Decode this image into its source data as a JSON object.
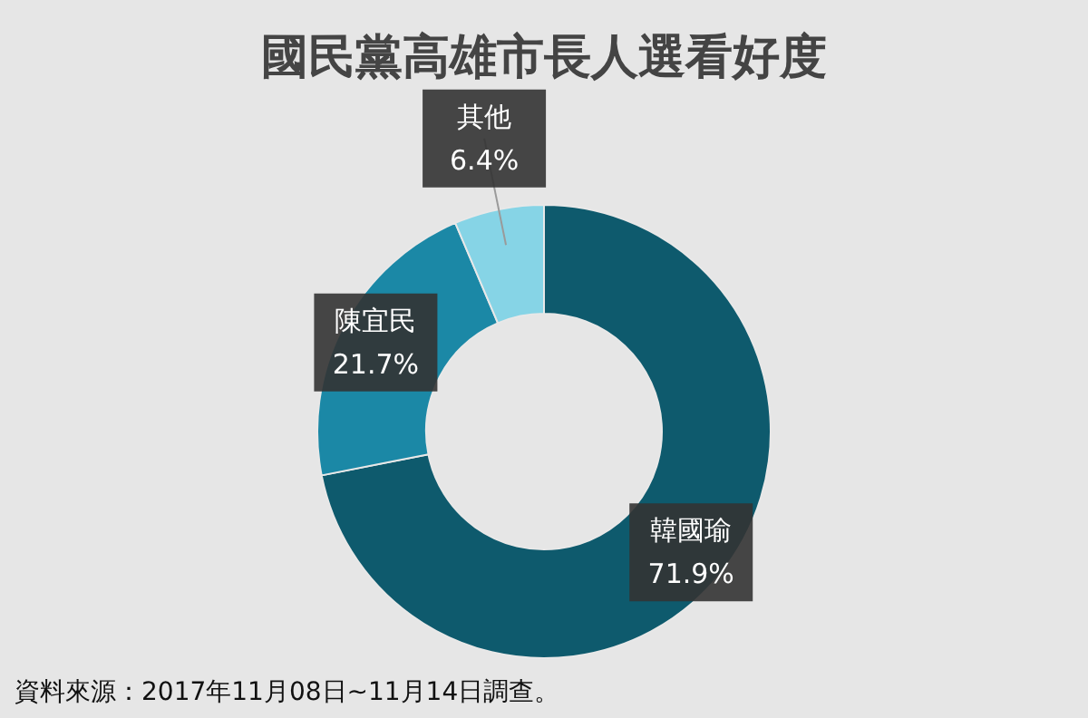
{
  "chart_data": {
    "type": "donut",
    "title": "國民黨高雄市長人選看好度",
    "categories": [
      "韓國瑜",
      "陳宜民",
      "其他"
    ],
    "values": [
      71.9,
      21.7,
      6.4
    ],
    "value_labels": [
      "71.9%",
      "21.7%",
      "6.4%"
    ],
    "colors": [
      "#0e5a6d",
      "#1b88a6",
      "#86d4e6"
    ],
    "legend": false,
    "annotations": [
      "資料來源：2017年11月08日~11月14日調查。"
    ]
  }
}
